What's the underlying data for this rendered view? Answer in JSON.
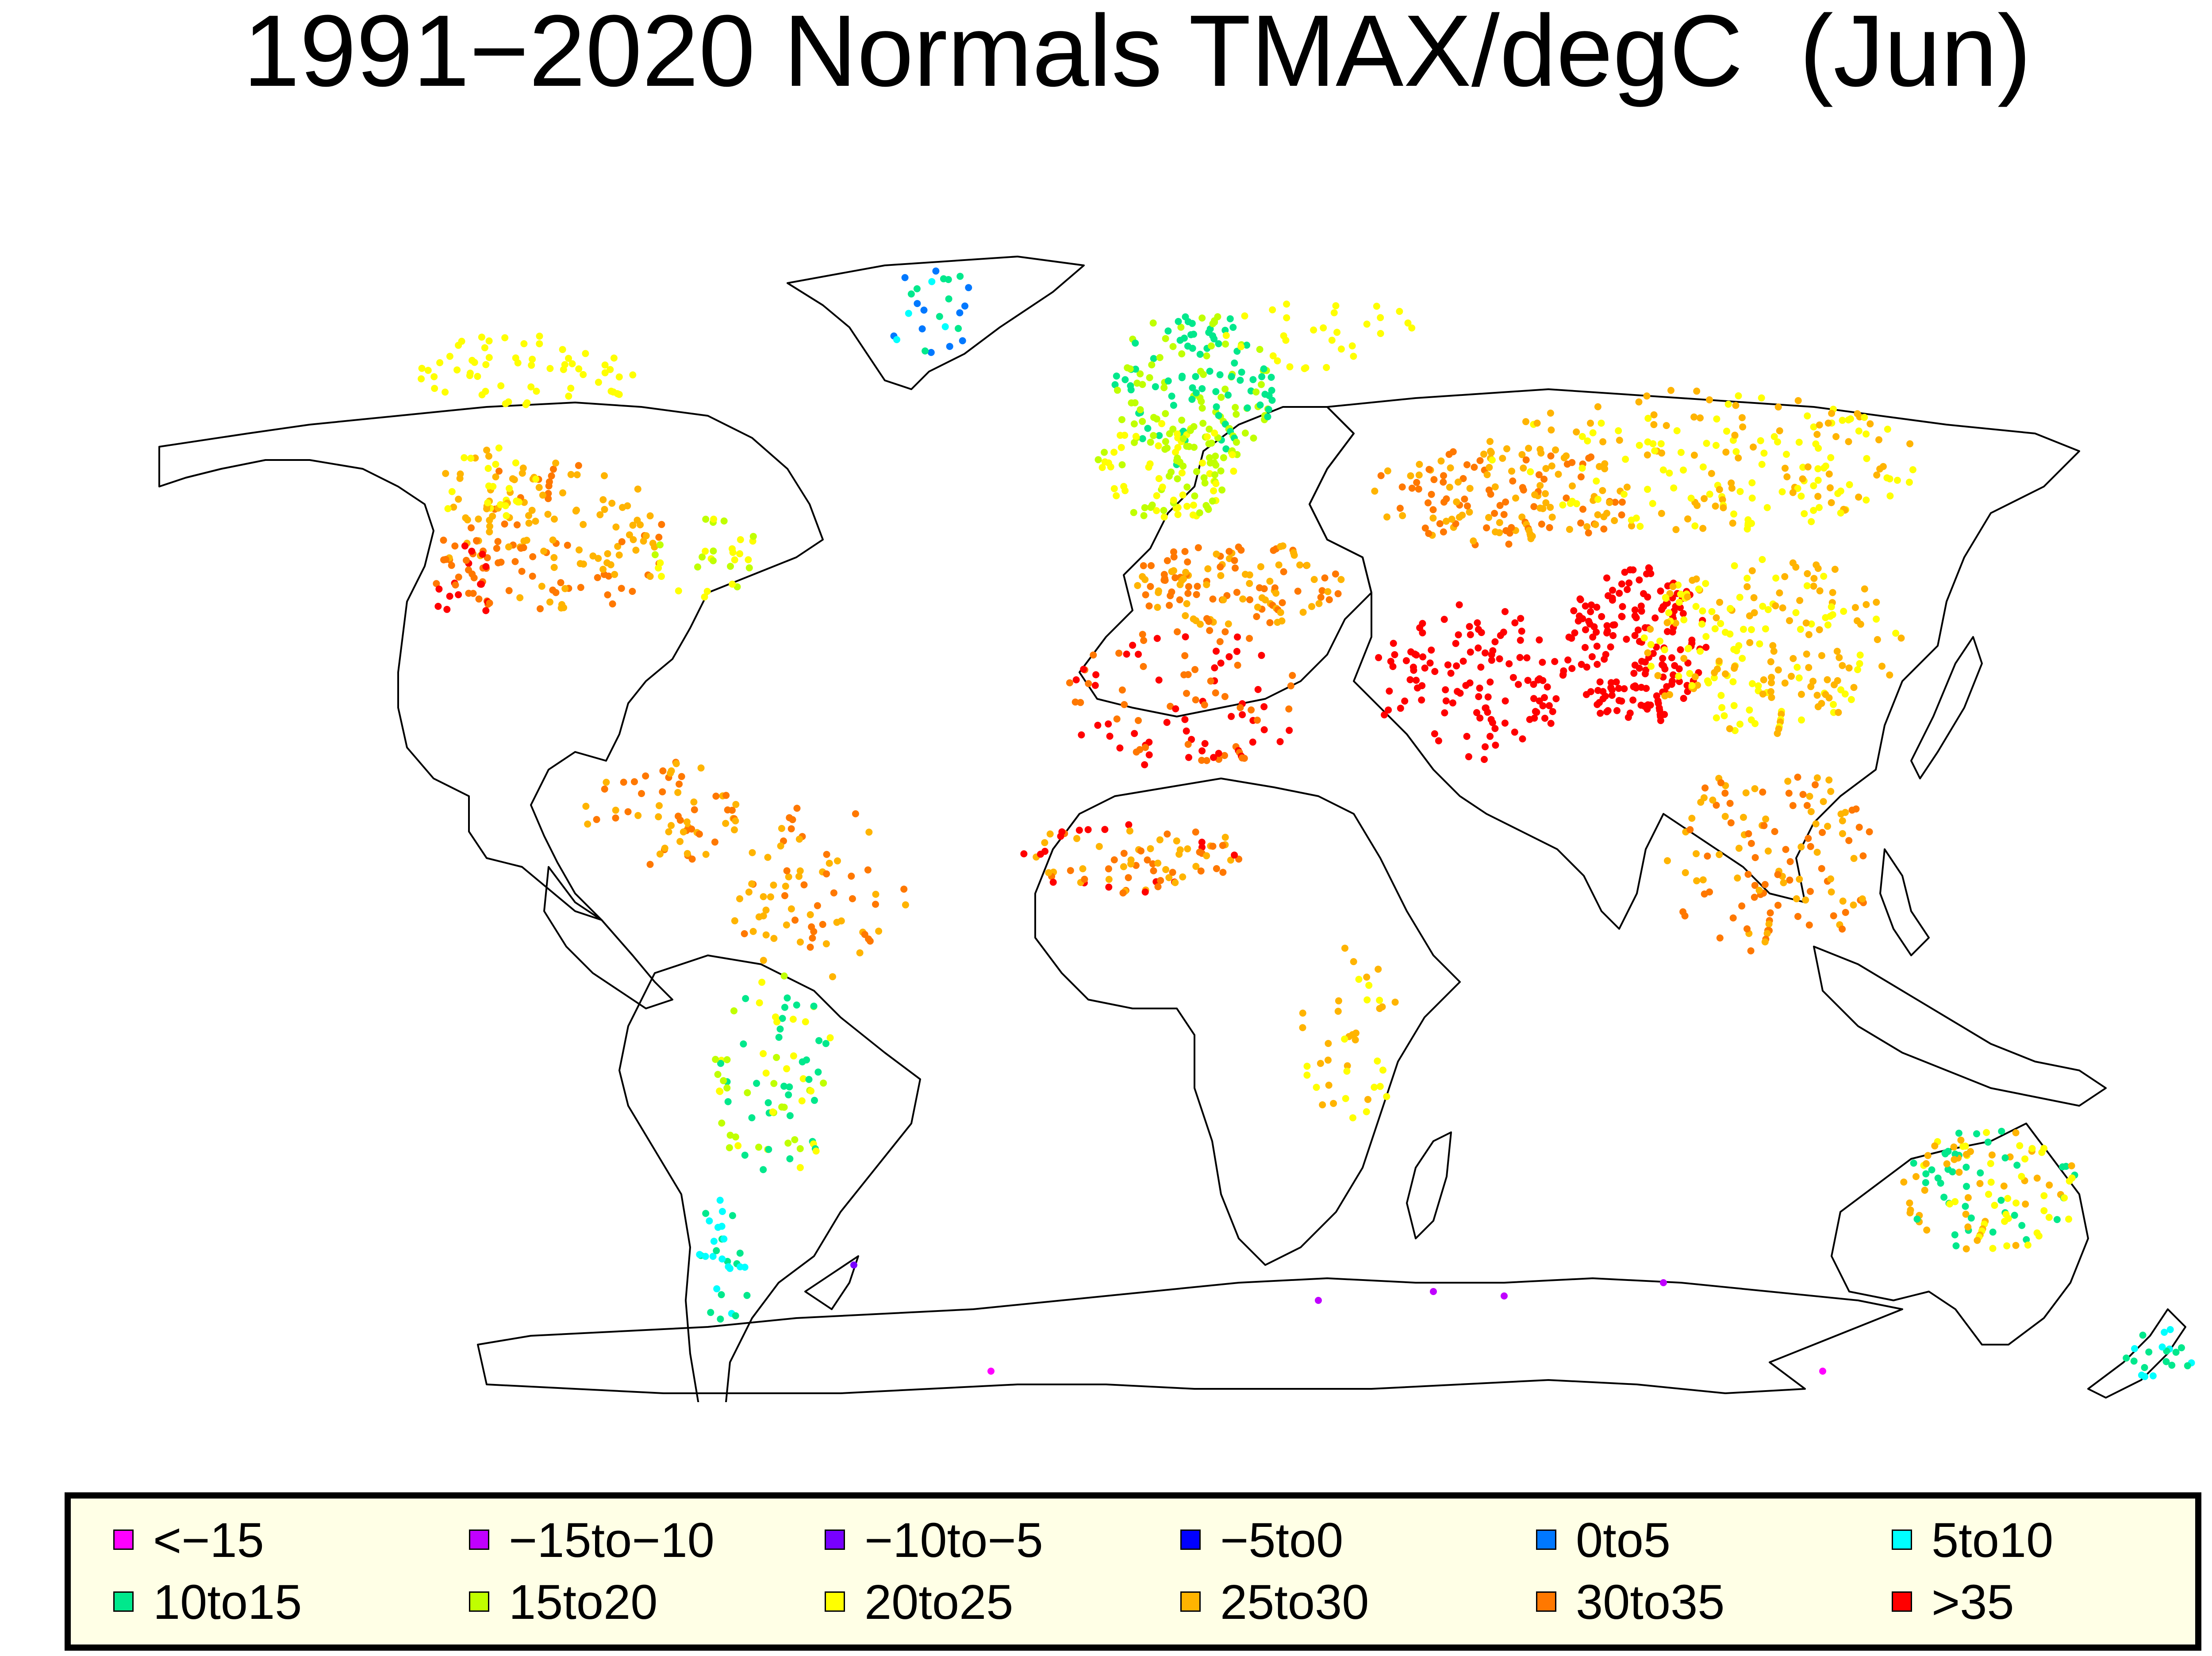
{
  "title": "1991−2020 Normals TMAX/degC  (Jun)",
  "legend": [
    {
      "label": "<−15",
      "color": "#ff00ff"
    },
    {
      "label": "−15to−10",
      "color": "#c000ff"
    },
    {
      "label": "−10to−5",
      "color": "#7800ff"
    },
    {
      "label": "−5to0",
      "color": "#0000ff"
    },
    {
      "label": "0to5",
      "color": "#0078ff"
    },
    {
      "label": "5to10",
      "color": "#00ffff"
    },
    {
      "label": "10to15",
      "color": "#00e88c"
    },
    {
      "label": "15to20",
      "color": "#c0ff00"
    },
    {
      "label": "20to25",
      "color": "#ffff00"
    },
    {
      "label": "25to30",
      "color": "#ffb400"
    },
    {
      "label": "30to35",
      "color": "#ff7800"
    },
    {
      "label": ">35",
      "color": "#ff0000"
    }
  ]
}
